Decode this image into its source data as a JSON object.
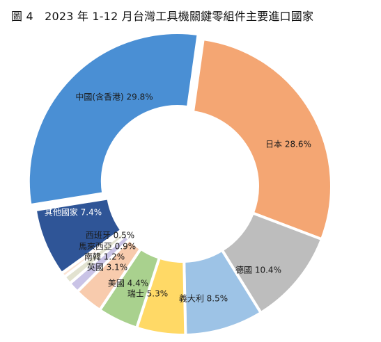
{
  "title": "圖 4　2023 年 1-12 月台灣工具機關鍵零組件主要進口國家",
  "chart_data": {
    "type": "pie",
    "variant": "donut",
    "title": "圖 4　2023 年 1-12 月台灣工具機關鍵零組件主要進口國家",
    "slices": [
      {
        "name": "日本",
        "value": 28.6,
        "label": "日本 28.6%",
        "color": "#F4A673"
      },
      {
        "name": "德國",
        "value": 10.4,
        "label": "德國 10.4%",
        "color": "#BDBDBD"
      },
      {
        "name": "義大利",
        "value": 8.5,
        "label": "義大利 8.5%",
        "color": "#9DC3E6"
      },
      {
        "name": "瑞士",
        "value": 5.3,
        "label": "瑞士 5.3%",
        "color": "#FFD966"
      },
      {
        "name": "美國",
        "value": 4.4,
        "label": "美國 4.4%",
        "color": "#A9D18E"
      },
      {
        "name": "英國",
        "value": 3.1,
        "label": "英國 3.1%",
        "color": "#F8CBAD"
      },
      {
        "name": "南韓",
        "value": 1.2,
        "label": "南韓 1.2%",
        "color": "#C9C3E6"
      },
      {
        "name": "馬來西亞",
        "value": 0.9,
        "label": "馬來西亞 0.9%",
        "color": "#E2E2D0"
      },
      {
        "name": "西班牙",
        "value": 0.5,
        "label": "西班牙 0.5%",
        "color": "#FBE5D6"
      },
      {
        "name": "其他國家",
        "value": 7.4,
        "label": "其他國家 7.4%",
        "color": "#2F5597"
      },
      {
        "name": "中國(含香港)",
        "value": 29.8,
        "label": "中國(含香港) 29.8%",
        "color": "#4A8FD4"
      }
    ]
  }
}
